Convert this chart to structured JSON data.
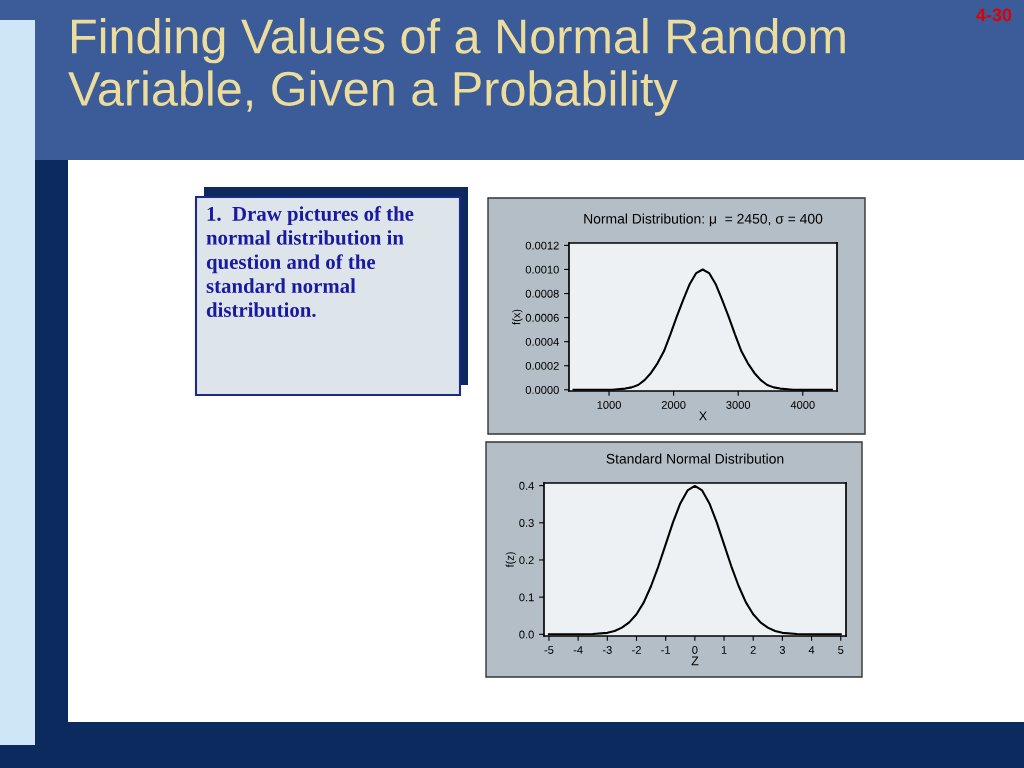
{
  "chart_data": [
    {
      "type": "other",
      "title": "Finding Values of a Normal Random Variable, Given a Probability",
      "annotations": [
        "4-30",
        "1.  Draw pictures of the normal distribution in question and of the standard normal distribution."
      ]
    },
    {
      "type": "line",
      "title": "Normal Distribution: μ  = 2450, σ = 400",
      "xlabel": "X",
      "ylabel": "f(x)",
      "grid": false,
      "marker": "none",
      "line_style": "solid",
      "series": [
        {
          "color": "#000000",
          "x": [
            450,
            850,
            1050,
            1250,
            1350,
            1450,
            1550,
            1650,
            1750,
            1850,
            1950,
            2050,
            2150,
            2250,
            2350,
            2450,
            2550,
            2650,
            2750,
            2850,
            2950,
            3050,
            3150,
            3250,
            3350,
            3450,
            3550,
            3650,
            3850,
            4050,
            4450
          ],
          "values": [
            0,
            0,
            0.0,
            1e-05,
            2e-05,
            4e-05,
            8e-05,
            0.00014,
            0.00022,
            0.00032,
            0.00046,
            0.00061,
            0.00075,
            0.00088,
            0.00097,
            0.001,
            0.00097,
            0.00088,
            0.00075,
            0.00061,
            0.00046,
            0.00032,
            0.00022,
            0.00014,
            8e-05,
            4e-05,
            2e-05,
            1e-05,
            0.0,
            0,
            0
          ]
        }
      ],
      "xlim": [
        380,
        4530
      ],
      "ylim": [
        -1e-05,
        0.00122
      ],
      "xticks": [
        1000,
        2000,
        3000,
        4000
      ],
      "yticks": [
        {
          "value": 0,
          "label": "0.0000"
        },
        {
          "value": 0.0002,
          "label": "0.0002"
        },
        {
          "value": 0.0004,
          "label": "0.0004"
        },
        {
          "value": 0.0006,
          "label": "0.0006"
        },
        {
          "value": 0.0008,
          "label": "0.0008"
        },
        {
          "value": 0.001,
          "label": "0.0010"
        },
        {
          "value": 0.0012,
          "label": "0.0012"
        }
      ]
    },
    {
      "type": "line",
      "title": "Standard Normal Distribution",
      "xlabel": "Z",
      "ylabel": "f(z)",
      "grid": false,
      "marker": "none",
      "line_style": "solid",
      "series": [
        {
          "color": "#000000",
          "x": [
            -5,
            -4,
            -3.5,
            -3,
            -2.75,
            -2.5,
            -2.25,
            -2,
            -1.75,
            -1.5,
            -1.25,
            -1,
            -0.75,
            -0.5,
            -0.25,
            0,
            0.25,
            0.5,
            0.75,
            1,
            1.25,
            1.5,
            1.75,
            2,
            2.25,
            2.5,
            2.75,
            3,
            3.5,
            4,
            5
          ],
          "values": [
            0,
            0,
            0.001,
            0.004,
            0.009,
            0.018,
            0.032,
            0.054,
            0.086,
            0.13,
            0.183,
            0.242,
            0.301,
            0.352,
            0.387,
            0.399,
            0.387,
            0.352,
            0.301,
            0.242,
            0.183,
            0.13,
            0.086,
            0.054,
            0.032,
            0.018,
            0.009,
            0.004,
            0.001,
            0,
            0
          ]
        }
      ],
      "xlim": [
        -5.17,
        5.18
      ],
      "ylim": [
        -0.0045,
        0.407
      ],
      "xticks": [
        -5,
        -4,
        -3,
        -2,
        -1,
        0,
        1,
        2,
        3,
        4,
        5
      ],
      "yticks": [
        {
          "value": 0,
          "label": "0.0"
        },
        0.1,
        0.2,
        0.3,
        0.4
      ]
    }
  ]
}
